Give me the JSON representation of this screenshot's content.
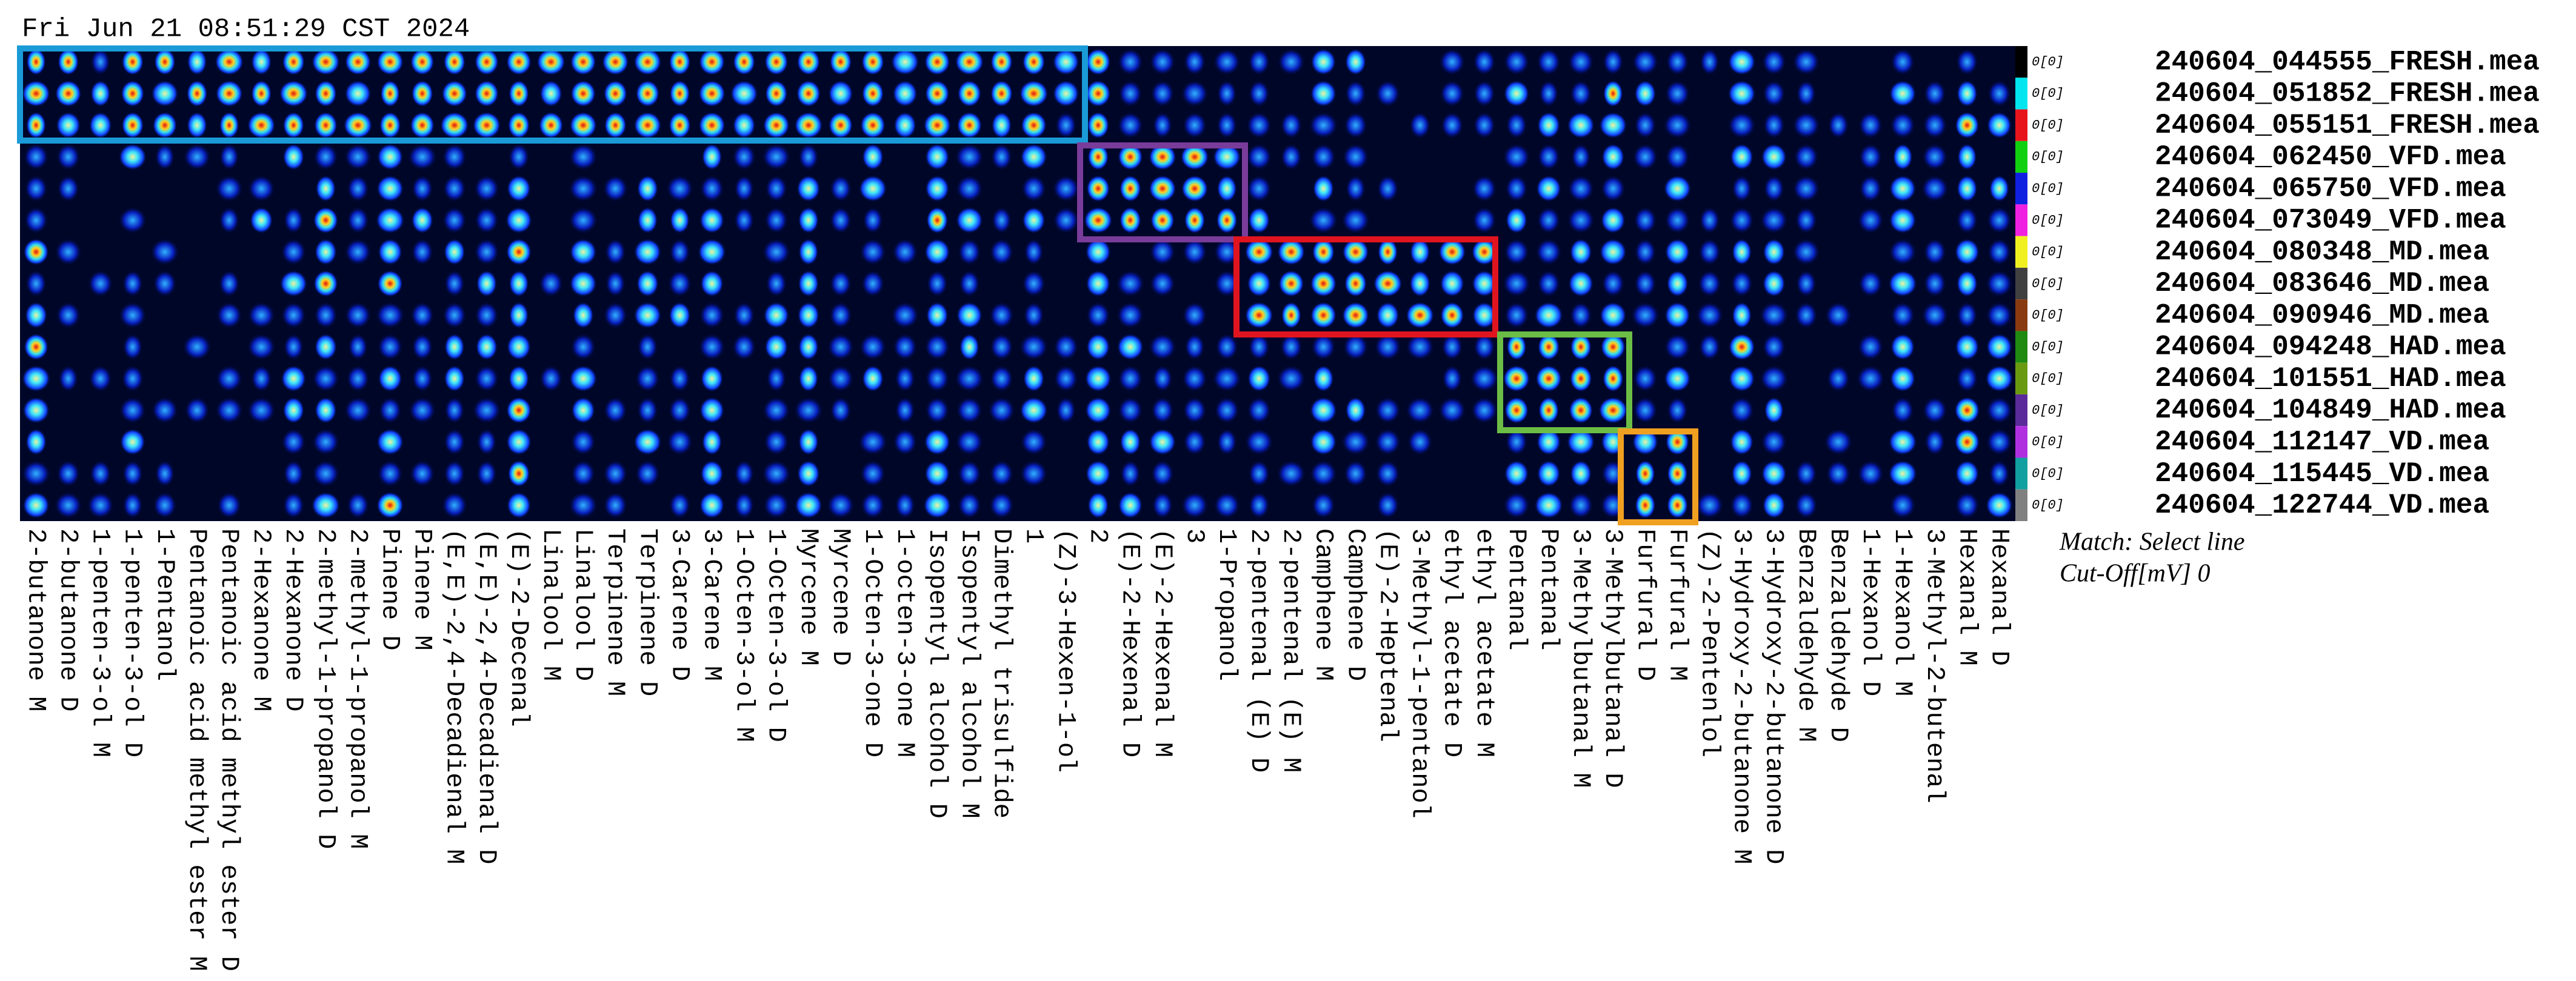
{
  "timestamp": "Fri Jun 21 08:51:29 CST 2024",
  "columns": [
    "2-butanone M",
    "2-butanone D",
    "1-penten-3-ol M",
    "1-penten-3-ol D",
    "1-Pentanol",
    "Pentanoic acid methyl ester M",
    "Pentanoic acid methyl ester D",
    "2-Hexanone M",
    "2-Hexanone D",
    "2-methyl-1-propanol D",
    "2-methyl-1-propanol M",
    "Pinene D",
    "Pinene M",
    "(E,E)-2,4-Decadienal M",
    "(E,E)-2,4-Decadienal D",
    "(E)-2-Decenal",
    "Linalool M",
    "Linalool D",
    "Terpinene M",
    "Terpinene D",
    "3-Carene D",
    "3-Carene M",
    "1-Octen-3-ol M",
    "1-Octen-3-ol D",
    "Myrcene M",
    "Myrcene D",
    "1-Octen-3-one D",
    "1-octen-3-one M",
    "Isopentyl alcohol D",
    "Isopentyl alcohol M",
    "Dimethyl trisulfide",
    "1",
    "(Z)-3-Hexen-1-ol",
    "2",
    "(E)-2-Hexenal D",
    "(E)-2-Hexenal M",
    "3",
    "1-Propanol",
    "2-pentenal (E) D",
    "2-pentenal (E) M",
    "Camphene M",
    "Camphene D",
    "(E)-2-Heptenal",
    "3-Methyl-1-pentanol",
    "ethyl acetate D",
    "ethyl acetate M",
    "Pentanal",
    "Pentanal",
    "3-Methylbutanal M",
    "3-Methylbutanal D",
    "Furfural D",
    "Furfural M",
    "(Z)-2-Pentenlol",
    "3-Hydroxy-2-butanone M",
    "3-Hydroxy-2-butanone D",
    "Benzaldehyde M",
    "Benzaldehyde D",
    "1-Hexanol D",
    "1-Hexanol M",
    "3-Methyl-2-butenal",
    "Hexanal M",
    "Hexanal D"
  ],
  "samples": [
    {
      "name": "240604_044555_FRESH.mea",
      "color": "#000000",
      "match": "0[0]"
    },
    {
      "name": "240604_051852_FRESH.mea",
      "color": "#00e5ee",
      "match": "0[0]"
    },
    {
      "name": "240604_055151_FRESH.mea",
      "color": "#e8141c",
      "match": "0[0]"
    },
    {
      "name": "240604_062450_VFD.mea",
      "color": "#10d010",
      "match": "0[0]"
    },
    {
      "name": "240604_065750_VFD.mea",
      "color": "#1020e0",
      "match": "0[0]"
    },
    {
      "name": "240604_073049_VFD.mea",
      "color": "#f020e0",
      "match": "0[0]"
    },
    {
      "name": "240604_080348_MD.mea",
      "color": "#f0f020",
      "match": "0[0]"
    },
    {
      "name": "240604_083646_MD.mea",
      "color": "#404040",
      "match": "0[0]"
    },
    {
      "name": "240604_090946_MD.mea",
      "color": "#8a3a10",
      "match": "0[0]"
    },
    {
      "name": "240604_094248_HAD.mea",
      "color": "#208a10",
      "match": "0[0]"
    },
    {
      "name": "240604_101551_HAD.mea",
      "color": "#6a9a10",
      "match": "0[0]"
    },
    {
      "name": "240604_104849_HAD.mea",
      "color": "#5a2a9a",
      "match": "0[0]"
    },
    {
      "name": "240604_112147_VD.mea",
      "color": "#b030e0",
      "match": "0[0]"
    },
    {
      "name": "240604_115445_VD.mea",
      "color": "#10a0a0",
      "match": "0[0]"
    },
    {
      "name": "240604_122744_VD.mea",
      "color": "#808080",
      "match": "0[0]"
    }
  ],
  "match_label": "Match: Select line",
  "cutoff_label": "Cut-Off[mV] 0"
}
